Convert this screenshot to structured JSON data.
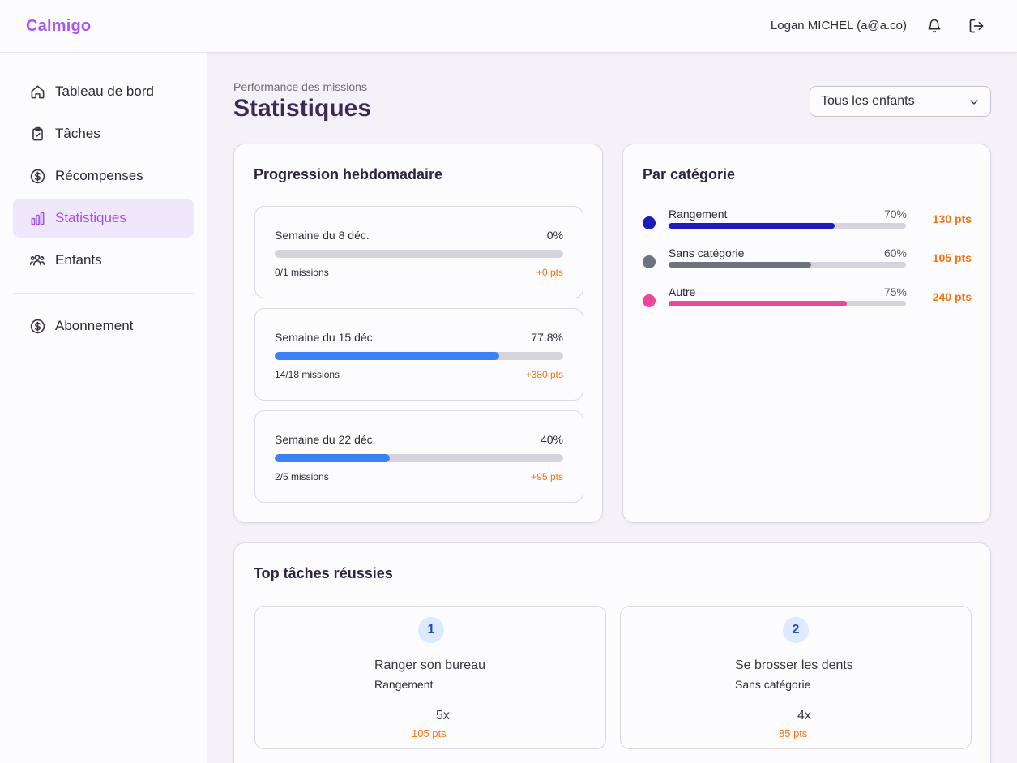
{
  "app": {
    "brand": "Calmigo",
    "user_label": "Logan MICHEL (a@a.co)"
  },
  "header_icons": {
    "notifications": "bell-icon",
    "logout": "logout-icon"
  },
  "sidebar": {
    "items": [
      {
        "label": "Tableau de bord",
        "icon": "home-icon",
        "active": false
      },
      {
        "label": "Tâches",
        "icon": "clipboard-check-icon",
        "active": false
      },
      {
        "label": "Récompenses",
        "icon": "dollar-circle-icon",
        "active": false
      },
      {
        "label": "Statistiques",
        "icon": "bar-chart-icon",
        "active": true
      },
      {
        "label": "Enfants",
        "icon": "users-icon",
        "active": false
      }
    ],
    "secondary": [
      {
        "label": "Abonnement",
        "icon": "dollar-circle-icon",
        "active": false
      }
    ]
  },
  "page": {
    "subtitle": "Performance des missions",
    "title": "Statistiques",
    "filter": {
      "selected": "Tous les enfants"
    }
  },
  "weekly": {
    "title": "Progression hebdomadaire",
    "weeks": [
      {
        "label": "Semaine du 8 déc.",
        "percent_label": "0%",
        "progress": 0,
        "missions": "0/1 missions",
        "points": "+0 pts"
      },
      {
        "label": "Semaine du 15 déc.",
        "percent_label": "77.8%",
        "progress": 0.778,
        "missions": "14/18 missions",
        "points": "+380 pts"
      },
      {
        "label": "Semaine du 22 déc.",
        "percent_label": "40%",
        "progress": 0.4,
        "missions": "2/5 missions",
        "points": "+95 pts"
      }
    ]
  },
  "categories": {
    "title": "Par catégorie",
    "items": [
      {
        "name": "Rangement",
        "percent_label": "70%",
        "progress": 0.7,
        "points": "130 pts",
        "color": "#1e1bb8"
      },
      {
        "name": "Sans catégorie",
        "percent_label": "60%",
        "progress": 0.6,
        "points": "105 pts",
        "color": "#6b7280"
      },
      {
        "name": "Autre",
        "percent_label": "75%",
        "progress": 0.75,
        "points": "240 pts",
        "color": "#ec4899"
      }
    ]
  },
  "top_tasks": {
    "title": "Top tâches réussies",
    "items": [
      {
        "rank": "1",
        "name": "Ranger son bureau",
        "category": "Rangement",
        "count": "5x",
        "points": "105 pts"
      },
      {
        "rank": "2",
        "name": "Se brosser les dents",
        "category": "Sans catégorie",
        "count": "4x",
        "points": "85 pts"
      }
    ]
  },
  "colors": {
    "brand": "#a855f7",
    "progress": "#3b82f6",
    "points": "#f97316",
    "active_nav_bg": "#f1e7fc"
  }
}
